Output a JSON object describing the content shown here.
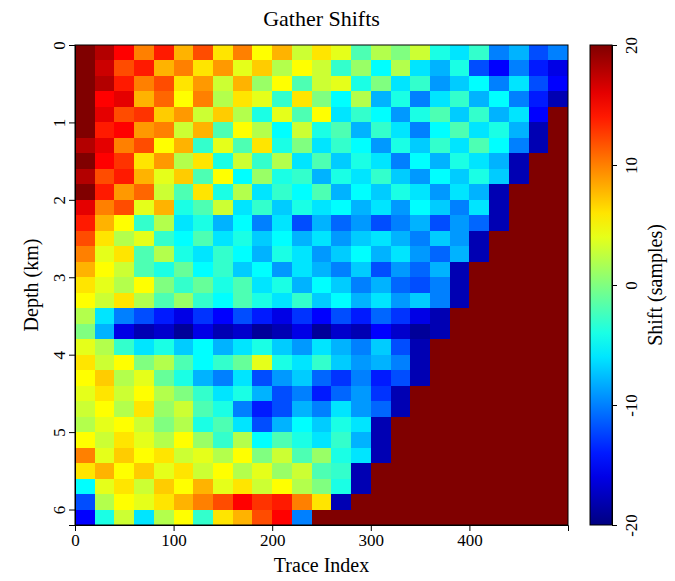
{
  "chart_data": {
    "type": "heatmap",
    "title": "Gather Shifts",
    "x_label": "Trace Index",
    "y_label": "Depth (km)",
    "x": [
      10,
      30,
      50,
      70,
      90,
      110,
      130,
      150,
      170,
      190,
      210,
      230,
      250,
      270,
      290,
      310,
      330,
      350,
      370,
      390,
      410,
      430,
      450,
      470,
      490
    ],
    "y": [
      0.1,
      0.3,
      0.5,
      0.7,
      0.9,
      1.1,
      1.3,
      1.5,
      1.7,
      1.9,
      2.1,
      2.3,
      2.5,
      2.7,
      2.9,
      3.1,
      3.3,
      3.5,
      3.7,
      3.9,
      4.1,
      4.3,
      4.5,
      4.7,
      4.9,
      5.1,
      5.3,
      5.5,
      5.7,
      5.9,
      6.1
    ],
    "values": [
      [
        20,
        18,
        15,
        10,
        14,
        8,
        12,
        6,
        10,
        5,
        8,
        3,
        6,
        4,
        -2,
        2,
        0,
        3,
        -4,
        -6,
        -3,
        -10,
        -8,
        -12,
        -10
      ],
      [
        20,
        17,
        12,
        14,
        8,
        10,
        6,
        9,
        4,
        7,
        2,
        5,
        3,
        -3,
        1,
        -5,
        2,
        -6,
        -8,
        -4,
        -12,
        -15,
        -10,
        -14,
        -16
      ],
      [
        20,
        18,
        14,
        10,
        12,
        6,
        9,
        3,
        8,
        1,
        5,
        -2,
        3,
        4,
        -4,
        0,
        -6,
        -3,
        -9,
        -7,
        -5,
        -10,
        -6,
        -12,
        -15
      ],
      [
        20,
        15,
        16,
        8,
        11,
        5,
        10,
        2,
        6,
        4,
        -3,
        6,
        0,
        -5,
        2,
        -8,
        -4,
        -10,
        -6,
        -3,
        -8,
        -5,
        -10,
        -14,
        -18
      ],
      [
        20,
        16,
        12,
        13,
        7,
        9,
        3,
        7,
        2,
        -4,
        4,
        -2,
        5,
        -6,
        -3,
        -5,
        -9,
        -4,
        -2,
        -7,
        -3,
        -8,
        -6,
        -15,
        20
      ],
      [
        20,
        14,
        15,
        9,
        10,
        3,
        8,
        -2,
        5,
        2,
        -5,
        3,
        -4,
        -2,
        -8,
        -3,
        -6,
        -10,
        -5,
        -2,
        -6,
        -4,
        -8,
        -18,
        20
      ],
      [
        18,
        16,
        10,
        12,
        5,
        8,
        -3,
        4,
        -2,
        6,
        -4,
        0,
        -6,
        -3,
        -5,
        -9,
        -4,
        -7,
        -3,
        -6,
        -2,
        -5,
        -10,
        -18,
        20
      ],
      [
        20,
        15,
        13,
        6,
        9,
        2,
        6,
        -4,
        3,
        -3,
        2,
        -6,
        -2,
        -7,
        -4,
        -6,
        -10,
        -5,
        -8,
        -4,
        -6,
        -8,
        -18,
        20,
        20
      ],
      [
        18,
        12,
        14,
        8,
        4,
        7,
        -2,
        5,
        -5,
        1,
        -4,
        -3,
        -8,
        -4,
        -6,
        -3,
        -7,
        -9,
        -5,
        -7,
        -4,
        -7,
        -18,
        20,
        20
      ],
      [
        20,
        14,
        9,
        11,
        3,
        -2,
        6,
        -4,
        2,
        -6,
        -3,
        -5,
        -2,
        -8,
        -5,
        -7,
        -4,
        -6,
        -9,
        -6,
        -8,
        -18,
        20,
        20,
        20
      ],
      [
        16,
        10,
        12,
        4,
        8,
        -4,
        -2,
        3,
        -6,
        -3,
        -7,
        -4,
        -6,
        -5,
        -8,
        -6,
        -9,
        -5,
        -7,
        -10,
        -6,
        -18,
        20,
        20,
        20
      ],
      [
        14,
        8,
        5,
        -3,
        2,
        -6,
        -4,
        -8,
        -5,
        -10,
        -6,
        -12,
        -8,
        -11,
        -9,
        -12,
        -10,
        -8,
        -12,
        -9,
        -11,
        -18,
        20,
        20,
        20
      ],
      [
        12,
        6,
        2,
        4,
        -3,
        -5,
        -2,
        -6,
        -4,
        -7,
        -5,
        -8,
        -6,
        -9,
        -7,
        -6,
        -8,
        -10,
        -7,
        -9,
        -18,
        20,
        20,
        20,
        20
      ],
      [
        10,
        4,
        6,
        -2,
        2,
        -4,
        -6,
        -3,
        -5,
        -8,
        -4,
        -6,
        -9,
        -7,
        -5,
        -8,
        -6,
        -9,
        -11,
        -8,
        -18,
        20,
        20,
        20,
        20
      ],
      [
        8,
        5,
        3,
        -2,
        -4,
        -1,
        -5,
        -3,
        -7,
        -5,
        -9,
        -6,
        -8,
        -10,
        -7,
        -12,
        -9,
        -11,
        -8,
        -18,
        20,
        20,
        20,
        20,
        20
      ],
      [
        6,
        4,
        2,
        5,
        0,
        -3,
        -1,
        -4,
        -2,
        -6,
        -4,
        -8,
        -5,
        -7,
        -10,
        -8,
        -11,
        -12,
        -10,
        -18,
        20,
        20,
        20,
        20,
        20
      ],
      [
        5,
        3,
        6,
        2,
        -2,
        1,
        -3,
        -5,
        -2,
        -4,
        -6,
        -3,
        -7,
        -5,
        -8,
        -6,
        -9,
        -7,
        -10,
        -18,
        20,
        20,
        20,
        20,
        20
      ],
      [
        2,
        -6,
        -10,
        -12,
        -14,
        -16,
        -13,
        -15,
        -12,
        -14,
        -16,
        -13,
        -15,
        -12,
        -14,
        -11,
        -13,
        -16,
        -18,
        20,
        20,
        20,
        20,
        20,
        20
      ],
      [
        0,
        -8,
        -16,
        -18,
        -17,
        -19,
        -16,
        -18,
        -17,
        -19,
        -18,
        -16,
        -19,
        -17,
        -18,
        -15,
        -17,
        -19,
        -18,
        20,
        20,
        20,
        20,
        20,
        20
      ],
      [
        4,
        2,
        -3,
        -6,
        -4,
        -7,
        -5,
        -8,
        -6,
        -4,
        -7,
        -9,
        -6,
        -8,
        -10,
        -7,
        -12,
        -18,
        20,
        20,
        20,
        20,
        20,
        20,
        20
      ],
      [
        6,
        3,
        5,
        0,
        2,
        -2,
        -5,
        -3,
        -1,
        4,
        -4,
        -6,
        -3,
        -7,
        -9,
        -8,
        -10,
        -18,
        20,
        20,
        20,
        20,
        20,
        20,
        20
      ],
      [
        5,
        7,
        2,
        4,
        -1,
        -4,
        -8,
        -10,
        -6,
        -12,
        -9,
        -7,
        -11,
        -13,
        -10,
        -14,
        -12,
        -18,
        20,
        20,
        20,
        20,
        20,
        20,
        20
      ],
      [
        4,
        6,
        3,
        5,
        2,
        0,
        -3,
        -6,
        -4,
        -8,
        -12,
        -10,
        -14,
        -11,
        -9,
        -13,
        -18,
        20,
        20,
        20,
        20,
        20,
        20,
        20,
        20
      ],
      [
        3,
        5,
        2,
        6,
        1,
        3,
        -2,
        -4,
        -10,
        -14,
        -12,
        -8,
        -10,
        -6,
        -9,
        -11,
        -18,
        20,
        20,
        20,
        20,
        20,
        20,
        20,
        20
      ],
      [
        2,
        4,
        5,
        3,
        0,
        2,
        -4,
        -2,
        -6,
        -12,
        -8,
        -5,
        -7,
        -4,
        -6,
        -18,
        20,
        20,
        20,
        20,
        20,
        20,
        20,
        20,
        20
      ],
      [
        5,
        3,
        6,
        4,
        2,
        5,
        1,
        -3,
        2,
        -5,
        -2,
        -4,
        -6,
        -3,
        -8,
        -18,
        20,
        20,
        20,
        20,
        20,
        20,
        20,
        20,
        20
      ],
      [
        10,
        4,
        7,
        5,
        6,
        3,
        4,
        2,
        5,
        0,
        3,
        -2,
        1,
        -4,
        -6,
        -18,
        20,
        20,
        20,
        20,
        20,
        20,
        20,
        20,
        20
      ],
      [
        6,
        8,
        5,
        7,
        4,
        6,
        3,
        5,
        2,
        4,
        1,
        3,
        -2,
        -3,
        -18,
        20,
        20,
        20,
        20,
        20,
        20,
        20,
        20,
        20,
        20
      ],
      [
        -5,
        4,
        6,
        3,
        7,
        5,
        8,
        4,
        6,
        3,
        5,
        2,
        0,
        -4,
        -18,
        20,
        20,
        20,
        20,
        20,
        20,
        20,
        20,
        20,
        20
      ],
      [
        -12,
        2,
        5,
        4,
        6,
        8,
        10,
        12,
        15,
        13,
        14,
        10,
        6,
        -18,
        20,
        20,
        20,
        20,
        20,
        20,
        20,
        20,
        20,
        20,
        20
      ],
      [
        -15,
        -4,
        3,
        -6,
        2,
        5,
        -3,
        6,
        8,
        12,
        15,
        -10,
        20,
        20,
        20,
        20,
        20,
        20,
        20,
        20,
        20,
        20,
        20,
        20,
        20
      ]
    ],
    "xlim": [
      0,
      500
    ],
    "xticks": [
      0,
      100,
      200,
      300,
      400
    ],
    "ylim": [
      0,
      6.2
    ],
    "yticks": [
      0,
      1,
      2,
      3,
      4,
      5,
      6
    ],
    "colorbar": {
      "label": "Shift (samples)",
      "lim": [
        -20,
        20
      ],
      "ticks": [
        -20,
        -10,
        0,
        10,
        20
      ]
    }
  }
}
